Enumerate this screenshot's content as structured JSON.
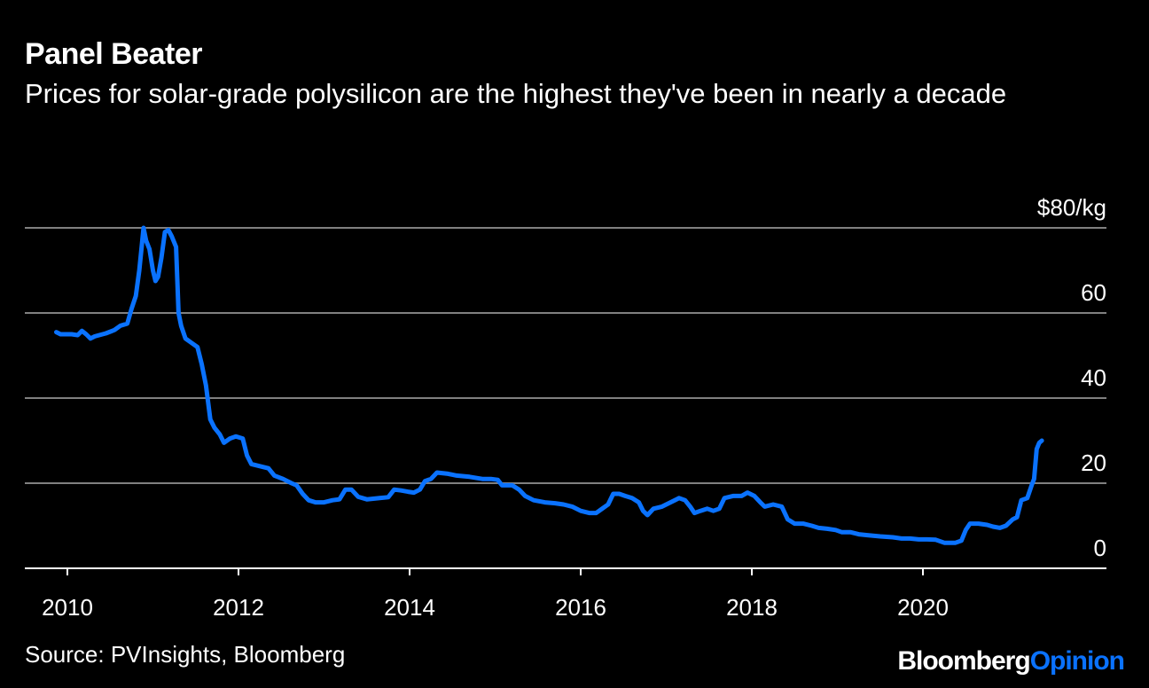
{
  "header": {
    "title": "Panel Beater",
    "subtitle": "Prices for solar-grade polysilicon are the highest they've been in nearly a decade"
  },
  "footer": {
    "source": "Source: PVInsights, Bloomberg",
    "brand_part1": "Bloomberg",
    "brand_part2": "Opinion"
  },
  "colors": {
    "background": "#000000",
    "line": "#0a72ff",
    "grid": "#808080",
    "text": "#ffffff"
  },
  "chart_data": {
    "type": "line",
    "title": "Panel Beater",
    "subtitle": "Prices for solar-grade polysilicon are the highest they've been in nearly a decade",
    "xlabel": "",
    "ylabel": "",
    "unit": "$/kg",
    "xlim": [
      2009.7,
      2021.9
    ],
    "ylim": [
      0,
      80
    ],
    "y_ticks": [
      0,
      20,
      40,
      60,
      80
    ],
    "y_tick_labels": [
      "0",
      "20",
      "40",
      "60",
      "$80/kg"
    ],
    "x_ticks": [
      2010,
      2012,
      2014,
      2016,
      2018,
      2020
    ],
    "x_tick_labels": [
      "2010",
      "2012",
      "2014",
      "2016",
      "2018",
      "2020"
    ],
    "grid": true,
    "series": [
      {
        "values": [
          [
            2009.87,
            55.5
          ],
          [
            2009.92,
            55.0
          ],
          [
            2010.05,
            55.0
          ],
          [
            2010.12,
            54.8
          ],
          [
            2010.17,
            55.8
          ],
          [
            2010.22,
            55.0
          ],
          [
            2010.27,
            54.0
          ],
          [
            2010.32,
            54.5
          ],
          [
            2010.45,
            55.2
          ],
          [
            2010.55,
            56.0
          ],
          [
            2010.62,
            57.0
          ],
          [
            2010.7,
            57.5
          ],
          [
            2010.75,
            61.0
          ],
          [
            2010.8,
            64.0
          ],
          [
            2010.84,
            70.0
          ],
          [
            2010.87,
            76.0
          ],
          [
            2010.89,
            80.0
          ],
          [
            2010.92,
            77.0
          ],
          [
            2010.96,
            75.0
          ],
          [
            2011.0,
            70.0
          ],
          [
            2011.03,
            67.5
          ],
          [
            2011.06,
            68.5
          ],
          [
            2011.1,
            73.0
          ],
          [
            2011.14,
            79.0
          ],
          [
            2011.18,
            79.5
          ],
          [
            2011.22,
            78.0
          ],
          [
            2011.27,
            75.5
          ],
          [
            2011.3,
            60.0
          ],
          [
            2011.33,
            57.0
          ],
          [
            2011.38,
            54.0
          ],
          [
            2011.45,
            53.0
          ],
          [
            2011.52,
            52.0
          ],
          [
            2011.57,
            48.0
          ],
          [
            2011.62,
            43.0
          ],
          [
            2011.67,
            35.0
          ],
          [
            2011.72,
            33.0
          ],
          [
            2011.78,
            31.5
          ],
          [
            2011.83,
            29.5
          ],
          [
            2011.9,
            30.5
          ],
          [
            2011.97,
            31.0
          ],
          [
            2012.05,
            30.5
          ],
          [
            2012.1,
            26.5
          ],
          [
            2012.15,
            24.5
          ],
          [
            2012.25,
            24.0
          ],
          [
            2012.35,
            23.5
          ],
          [
            2012.42,
            21.8
          ],
          [
            2012.52,
            21.0
          ],
          [
            2012.62,
            20.0
          ],
          [
            2012.68,
            19.5
          ],
          [
            2012.75,
            17.5
          ],
          [
            2012.82,
            16.0
          ],
          [
            2012.9,
            15.5
          ],
          [
            2013.0,
            15.5
          ],
          [
            2013.1,
            16.0
          ],
          [
            2013.18,
            16.2
          ],
          [
            2013.25,
            18.5
          ],
          [
            2013.32,
            18.5
          ],
          [
            2013.4,
            16.8
          ],
          [
            2013.5,
            16.2
          ],
          [
            2013.65,
            16.5
          ],
          [
            2013.75,
            16.7
          ],
          [
            2013.82,
            18.5
          ],
          [
            2013.9,
            18.3
          ],
          [
            2013.98,
            18.0
          ],
          [
            2014.05,
            17.8
          ],
          [
            2014.12,
            18.5
          ],
          [
            2014.18,
            20.5
          ],
          [
            2014.25,
            21.0
          ],
          [
            2014.32,
            22.5
          ],
          [
            2014.45,
            22.2
          ],
          [
            2014.55,
            21.8
          ],
          [
            2014.7,
            21.5
          ],
          [
            2014.85,
            21.0
          ],
          [
            2014.95,
            21.0
          ],
          [
            2015.03,
            20.8
          ],
          [
            2015.08,
            19.5
          ],
          [
            2015.2,
            19.5
          ],
          [
            2015.28,
            18.5
          ],
          [
            2015.35,
            17.0
          ],
          [
            2015.45,
            16.0
          ],
          [
            2015.58,
            15.5
          ],
          [
            2015.7,
            15.3
          ],
          [
            2015.8,
            15.0
          ],
          [
            2015.9,
            14.5
          ],
          [
            2016.0,
            13.5
          ],
          [
            2016.1,
            13.0
          ],
          [
            2016.18,
            13.0
          ],
          [
            2016.25,
            14.0
          ],
          [
            2016.32,
            15.0
          ],
          [
            2016.38,
            17.5
          ],
          [
            2016.45,
            17.5
          ],
          [
            2016.52,
            17.0
          ],
          [
            2016.6,
            16.5
          ],
          [
            2016.68,
            15.5
          ],
          [
            2016.73,
            13.5
          ],
          [
            2016.78,
            12.5
          ],
          [
            2016.85,
            14.0
          ],
          [
            2016.95,
            14.5
          ],
          [
            2017.05,
            15.5
          ],
          [
            2017.15,
            16.5
          ],
          [
            2017.22,
            16.0
          ],
          [
            2017.28,
            14.5
          ],
          [
            2017.33,
            13.0
          ],
          [
            2017.4,
            13.5
          ],
          [
            2017.48,
            14.0
          ],
          [
            2017.55,
            13.5
          ],
          [
            2017.62,
            14.0
          ],
          [
            2017.68,
            16.5
          ],
          [
            2017.78,
            17.0
          ],
          [
            2017.88,
            17.0
          ],
          [
            2017.95,
            17.8
          ],
          [
            2018.03,
            17.0
          ],
          [
            2018.1,
            15.5
          ],
          [
            2018.15,
            14.5
          ],
          [
            2018.25,
            15.0
          ],
          [
            2018.35,
            14.5
          ],
          [
            2018.42,
            11.5
          ],
          [
            2018.5,
            10.5
          ],
          [
            2018.6,
            10.5
          ],
          [
            2018.7,
            10.0
          ],
          [
            2018.78,
            9.5
          ],
          [
            2018.88,
            9.3
          ],
          [
            2018.98,
            9.0
          ],
          [
            2019.05,
            8.5
          ],
          [
            2019.15,
            8.5
          ],
          [
            2019.25,
            8.0
          ],
          [
            2019.35,
            7.8
          ],
          [
            2019.5,
            7.5
          ],
          [
            2019.65,
            7.3
          ],
          [
            2019.75,
            7.0
          ],
          [
            2019.85,
            7.0
          ],
          [
            2019.95,
            6.8
          ],
          [
            2020.05,
            6.8
          ],
          [
            2020.15,
            6.7
          ],
          [
            2020.25,
            6.0
          ],
          [
            2020.38,
            6.0
          ],
          [
            2020.45,
            6.5
          ],
          [
            2020.5,
            9.0
          ],
          [
            2020.55,
            10.5
          ],
          [
            2020.65,
            10.5
          ],
          [
            2020.75,
            10.2
          ],
          [
            2020.82,
            9.8
          ],
          [
            2020.9,
            9.5
          ],
          [
            2020.97,
            10.0
          ],
          [
            2021.05,
            11.5
          ],
          [
            2021.1,
            12.0
          ],
          [
            2021.15,
            16.0
          ],
          [
            2021.22,
            16.5
          ],
          [
            2021.27,
            19.5
          ],
          [
            2021.3,
            21.0
          ],
          [
            2021.33,
            28.0
          ],
          [
            2021.36,
            29.5
          ],
          [
            2021.39,
            30.0
          ]
        ]
      }
    ]
  }
}
